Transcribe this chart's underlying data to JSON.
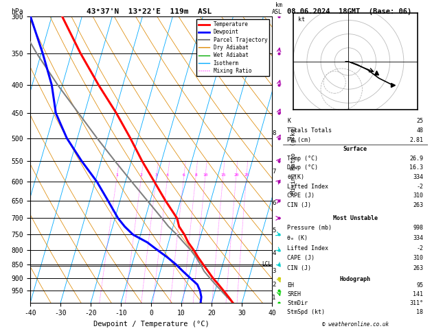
{
  "title_left": "43°37'N  13°22'E  119m  ASL",
  "title_right": "08.06.2024  18GMT  (Base: 06)",
  "xlabel": "Dewpoint / Temperature (°C)",
  "ylabel_left": "hPa",
  "pressure_ticks": [
    300,
    350,
    400,
    450,
    500,
    550,
    600,
    650,
    700,
    750,
    800,
    850,
    900,
    950
  ],
  "temp_range": [
    -40,
    40
  ],
  "mixing_ratios": [
    1,
    2,
    3,
    4,
    6,
    8,
    10,
    15,
    20,
    25
  ],
  "temperature_profile": {
    "pressure": [
      998,
      975,
      950,
      925,
      900,
      875,
      850,
      825,
      800,
      775,
      750,
      725,
      700,
      650,
      600,
      550,
      500,
      450,
      400,
      350,
      300
    ],
    "temp": [
      26.9,
      25.0,
      22.8,
      20.5,
      18.0,
      15.8,
      13.5,
      11.2,
      9.0,
      6.5,
      4.5,
      2.0,
      0.5,
      -5.0,
      -10.5,
      -16.5,
      -22.5,
      -29.5,
      -38.0,
      -47.0,
      -56.5
    ]
  },
  "dewpoint_profile": {
    "pressure": [
      998,
      975,
      950,
      925,
      900,
      875,
      850,
      825,
      800,
      775,
      750,
      725,
      700,
      650,
      600,
      550,
      500,
      450,
      400,
      350,
      300
    ],
    "temp": [
      16.3,
      16.0,
      15.0,
      13.5,
      10.5,
      7.5,
      4.5,
      1.0,
      -3.0,
      -7.0,
      -12.5,
      -16.0,
      -19.0,
      -24.0,
      -29.5,
      -36.5,
      -43.5,
      -49.5,
      -53.5,
      -59.5,
      -67.0
    ]
  },
  "parcel_profile": {
    "pressure": [
      998,
      975,
      950,
      925,
      900,
      875,
      855,
      825,
      800,
      775,
      750,
      725,
      700,
      650,
      600,
      550,
      500,
      450,
      400,
      350,
      300
    ],
    "temp": [
      26.9,
      24.5,
      22.0,
      19.5,
      17.0,
      14.5,
      13.0,
      10.5,
      8.0,
      5.0,
      2.0,
      -1.5,
      -4.5,
      -11.0,
      -18.0,
      -25.5,
      -33.5,
      -42.0,
      -51.5,
      -61.5,
      -72.0
    ]
  },
  "lcl_pressure": 855,
  "surface_data": {
    "K": 25,
    "Totals_Totals": 48,
    "PW_cm": 2.81,
    "Temp_C": 26.9,
    "Dewp_C": 16.3,
    "theta_e_K": 334,
    "Lifted_Index": -2,
    "CAPE_J": 310,
    "CIN_J": 263
  },
  "most_unstable": {
    "Pressure_mb": 998,
    "theta_e_K": 334,
    "Lifted_Index": -2,
    "CAPE_J": 310,
    "CIN_J": 263
  },
  "hodograph": {
    "EH": 95,
    "SREH": 141,
    "StmDir": 311,
    "StmSpd_kt": 18
  },
  "km_pressures": [
    977,
    925,
    875,
    812,
    737,
    658,
    575,
    490
  ],
  "km_labels": [
    "1",
    "2",
    "3",
    "4",
    "5",
    "6",
    "7",
    "8"
  ],
  "wind_barbs": {
    "pressures": [
      998,
      950,
      900,
      850,
      800,
      750,
      700,
      650,
      600,
      550,
      500,
      450,
      400,
      350,
      300
    ],
    "speeds": [
      5,
      8,
      10,
      12,
      15,
      18,
      20,
      22,
      25,
      28,
      30,
      28,
      25,
      22,
      20
    ],
    "dirs": [
      200,
      210,
      220,
      240,
      250,
      260,
      270,
      280,
      290,
      300,
      310,
      320,
      330,
      340,
      350
    ],
    "colors": [
      "#00cc00",
      "#00cc00",
      "#cccc00",
      "#00cccc",
      "#00cccc",
      "#00cccc",
      "#aa00aa",
      "#aa00aa",
      "#aa00aa",
      "#aa00aa",
      "#aa00aa",
      "#aa00aa",
      "#aa00aa",
      "#aa00aa",
      "#aa00aa"
    ]
  }
}
